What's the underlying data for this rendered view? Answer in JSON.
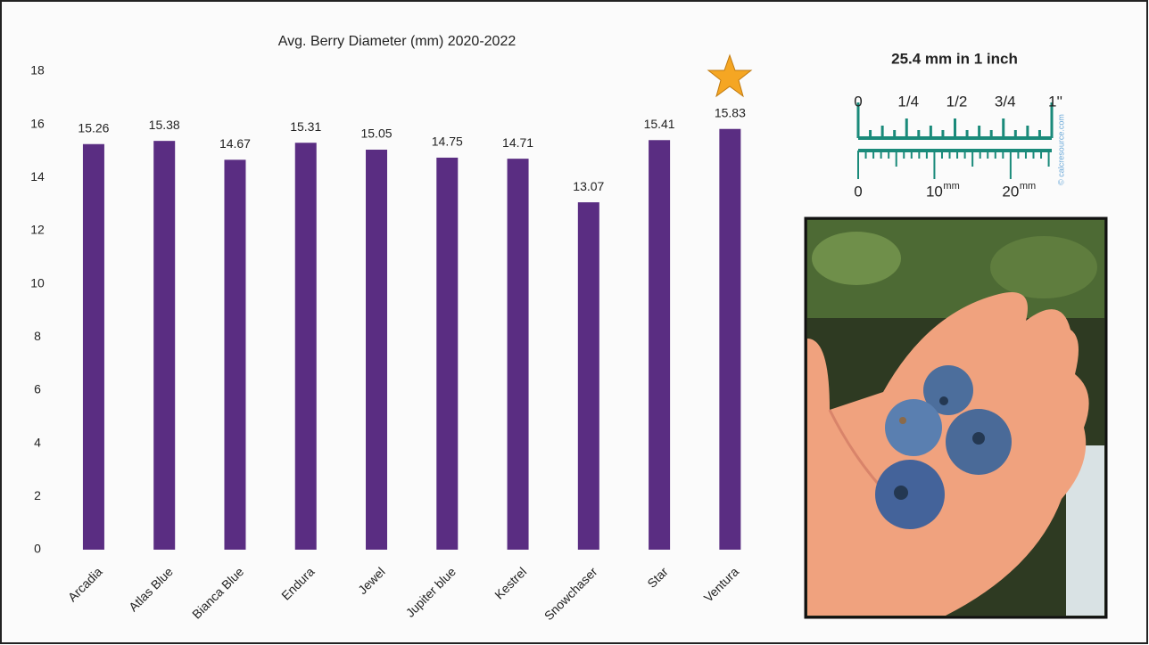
{
  "chart_data": {
    "type": "bar",
    "title": "Avg. Berry Diameter (mm)  2020-2022",
    "categories": [
      "Arcadia",
      "Atlas Blue",
      "Bianca Blue",
      "Endura",
      "Jewel",
      "Jupiter blue",
      "Kestrel",
      "Snowchaser",
      "Star",
      "Ventura"
    ],
    "values": [
      15.26,
      15.38,
      14.67,
      15.31,
      15.05,
      14.75,
      14.71,
      13.07,
      15.41,
      15.83
    ],
    "color": "#5a2d82",
    "ylim": [
      0,
      18
    ],
    "yticks": [
      0,
      2,
      4,
      6,
      8,
      10,
      12,
      14,
      16,
      18
    ],
    "grid": false
  },
  "ruler": {
    "title": "25.4 mm in 1 inch",
    "inch_labels": [
      "0",
      "1/4",
      "1/2",
      "3/4",
      "1''"
    ],
    "mm_labels": [
      "0",
      "10",
      "20"
    ],
    "mm_unit": "mm",
    "credit": "© calcresource.com"
  }
}
